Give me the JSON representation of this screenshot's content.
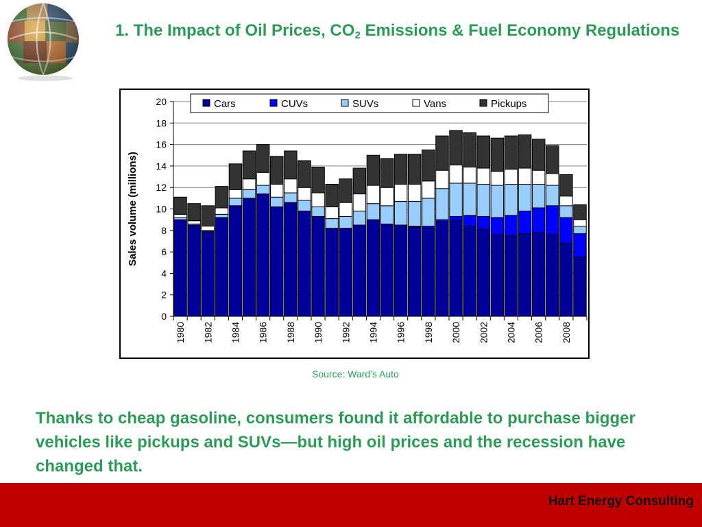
{
  "slide": {
    "title_part1": "1. The Impact of Oil Prices, CO",
    "title_sub": "2",
    "title_part2": " Emissions & Fuel Economy Regulations",
    "source": "Source: Ward’s Auto",
    "body": "Thanks to cheap gasoline, consumers found it affordable to purchase bigger vehicles like pickups and SUVs—but high oil prices and the recession have changed that.",
    "footer": "Hart Energy Consulting"
  },
  "colors": {
    "accent_green": "#2e9a57",
    "footer_red": "#c00000",
    "cars": "#000099",
    "cuvs": "#0000ff",
    "suvs": "#99ccff",
    "vans": "#ffffff",
    "pickups": "#333333"
  },
  "icons": [
    "globe-collage-icon"
  ],
  "chart_data": {
    "type": "bar",
    "stacked": true,
    "title": "",
    "xlabel": "",
    "ylabel": "Sales volume (millions)",
    "ylim": [
      0,
      20
    ],
    "yticks": [
      0,
      2,
      4,
      6,
      8,
      10,
      12,
      14,
      16,
      18,
      20
    ],
    "grid": true,
    "legend_position": "top",
    "categories": [
      "1980",
      "1981",
      "1982",
      "1983",
      "1984",
      "1985",
      "1986",
      "1987",
      "1988",
      "1989",
      "1990",
      "1991",
      "1992",
      "1993",
      "1994",
      "1995",
      "1996",
      "1997",
      "1998",
      "1999",
      "2000",
      "2001",
      "2002",
      "2003",
      "2004",
      "2005",
      "2006",
      "2007",
      "2008",
      "2009"
    ],
    "xtick_labels": [
      "1980",
      "",
      "1982",
      "",
      "1984",
      "",
      "1986",
      "",
      "1988",
      "",
      "1990",
      "",
      "1992",
      "",
      "1994",
      "",
      "1996",
      "",
      "1998",
      "",
      "2000",
      "",
      "2002",
      "",
      "2004",
      "",
      "2006",
      "",
      "2008",
      ""
    ],
    "series": [
      {
        "name": "Cars",
        "color": "#000099",
        "values": [
          9.0,
          8.5,
          7.9,
          9.2,
          10.3,
          11.0,
          11.4,
          10.2,
          10.6,
          9.8,
          9.3,
          8.2,
          8.2,
          8.5,
          9.0,
          8.6,
          8.5,
          8.3,
          8.2,
          8.8,
          8.9,
          8.4,
          8.1,
          7.6,
          7.5,
          7.7,
          7.8,
          7.6,
          6.8,
          5.5
        ]
      },
      {
        "name": "CUVs",
        "color": "#0000ff",
        "values": [
          0.0,
          0.0,
          0.0,
          0.0,
          0.0,
          0.0,
          0.0,
          0.0,
          0.0,
          0.0,
          0.0,
          0.0,
          0.0,
          0.0,
          0.0,
          0.0,
          0.0,
          0.1,
          0.2,
          0.2,
          0.4,
          1.0,
          1.2,
          1.6,
          1.9,
          2.1,
          2.3,
          2.7,
          2.4,
          2.2
        ]
      },
      {
        "name": "SUVs",
        "color": "#99ccff",
        "values": [
          0.2,
          0.1,
          0.1,
          0.3,
          0.7,
          0.8,
          0.8,
          0.9,
          0.9,
          1.0,
          0.9,
          0.9,
          1.1,
          1.3,
          1.5,
          1.7,
          2.2,
          2.3,
          2.6,
          2.9,
          3.1,
          3.0,
          3.0,
          3.0,
          2.9,
          2.5,
          2.2,
          1.9,
          1.1,
          0.7
        ]
      },
      {
        "name": "Vans",
        "color": "#ffffff",
        "values": [
          0.3,
          0.3,
          0.4,
          0.6,
          0.8,
          1.0,
          1.2,
          1.2,
          1.3,
          1.2,
          1.3,
          1.1,
          1.3,
          1.6,
          1.7,
          1.7,
          1.6,
          1.6,
          1.6,
          1.7,
          1.7,
          1.5,
          1.5,
          1.3,
          1.4,
          1.5,
          1.3,
          1.1,
          0.9,
          0.6
        ]
      },
      {
        "name": "Pickups",
        "color": "#333333",
        "values": [
          1.6,
          1.6,
          1.9,
          2.0,
          2.4,
          2.6,
          2.6,
          2.6,
          2.6,
          2.5,
          2.4,
          2.1,
          2.2,
          2.4,
          2.8,
          2.7,
          2.8,
          2.8,
          2.9,
          3.2,
          3.2,
          3.2,
          3.0,
          3.1,
          3.1,
          3.1,
          2.9,
          2.6,
          2.0,
          1.4
        ]
      }
    ]
  }
}
